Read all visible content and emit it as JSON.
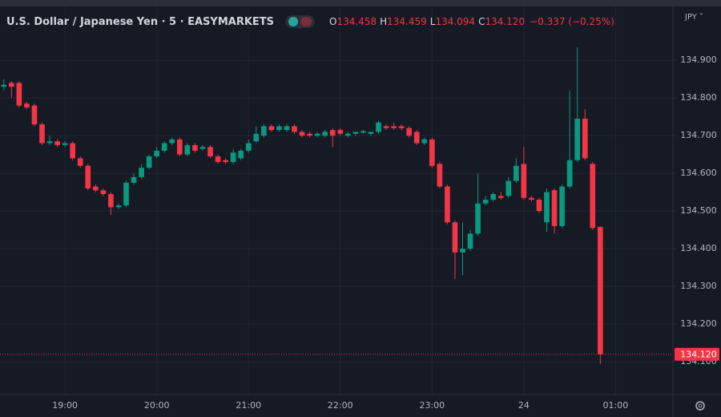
{
  "chart_data": {
    "type": "candlestick",
    "title": "U.S. Dollar / Japanese Yen · 5 · EASYMARKETS",
    "legend": {
      "o": "O",
      "open": "134.458",
      "h": "H",
      "high": "134.459",
      "l": "L",
      "low": "134.094",
      "c": "C",
      "close": "134.120",
      "change": "−0.337 (−0.25%)"
    },
    "currency": "JPY",
    "categories": [
      null,
      null,
      null,
      null,
      null,
      null,
      null,
      null,
      "19:00",
      null,
      null,
      null,
      null,
      null,
      null,
      null,
      null,
      null,
      null,
      null,
      "20:00",
      null,
      null,
      null,
      null,
      null,
      null,
      null,
      null,
      null,
      null,
      null,
      "21:00",
      null,
      null,
      null,
      null,
      null,
      null,
      null,
      null,
      null,
      null,
      null,
      "22:00",
      null,
      null,
      null,
      null,
      null,
      null,
      null,
      null,
      null,
      null,
      null,
      "23:00",
      null,
      null,
      null,
      null,
      null,
      null,
      null,
      null,
      null,
      null,
      null,
      "24",
      null,
      null,
      null,
      null,
      null,
      null,
      null,
      null,
      null,
      null,
      null,
      "01:00",
      null,
      null,
      null,
      null,
      null,
      null,
      null
    ],
    "open": [
      134.83,
      134.84,
      134.84,
      134.785,
      134.78,
      134.73,
      134.68,
      134.685,
      134.675,
      134.68,
      134.64,
      134.62,
      134.565,
      134.555,
      134.545,
      134.51,
      134.515,
      134.575,
      134.59,
      134.615,
      134.645,
      134.66,
      134.68,
      134.69,
      134.65,
      134.675,
      134.665,
      134.67,
      134.645,
      134.635,
      134.63,
      134.64,
      134.66,
      134.685,
      134.7,
      134.725,
      134.715,
      134.715,
      134.725,
      134.71,
      134.705,
      134.7,
      134.7,
      134.715,
      134.715,
      134.7,
      134.705,
      134.708,
      134.705,
      134.71,
      134.725,
      134.725,
      134.725,
      134.72,
      134.71,
      134.68,
      134.69,
      134.625,
      134.565,
      134.47,
      134.39,
      134.4,
      134.44,
      134.52,
      134.53,
      134.54,
      134.54,
      134.58,
      134.625,
      134.535,
      134.53,
      134.47,
      134.555,
      134.46,
      134.565,
      134.635,
      134.745,
      134.625,
      134.458,
      null,
      null,
      null,
      null,
      null,
      null,
      null,
      null,
      null
    ],
    "high": [
      134.85,
      134.845,
      134.845,
      134.79,
      134.785,
      134.735,
      134.7,
      134.69,
      134.685,
      134.685,
      134.645,
      134.625,
      134.57,
      134.56,
      134.55,
      134.52,
      134.58,
      134.6,
      134.625,
      134.65,
      134.67,
      134.685,
      134.695,
      134.695,
      134.68,
      134.68,
      134.675,
      134.675,
      134.65,
      134.64,
      134.665,
      134.665,
      134.69,
      134.725,
      134.73,
      134.73,
      134.73,
      134.73,
      134.73,
      134.715,
      134.71,
      134.71,
      134.715,
      134.72,
      134.72,
      134.71,
      134.71,
      134.715,
      134.71,
      134.74,
      134.73,
      134.735,
      134.73,
      134.725,
      134.715,
      134.695,
      134.695,
      134.63,
      134.57,
      134.475,
      134.47,
      134.45,
      134.6,
      134.54,
      134.55,
      134.55,
      134.59,
      134.64,
      134.67,
      134.54,
      134.535,
      134.56,
      134.56,
      134.57,
      134.82,
      134.935,
      134.77,
      134.63,
      134.459,
      null,
      null,
      null,
      null,
      null,
      null,
      null,
      null,
      null
    ],
    "low": [
      134.82,
      134.8,
      134.775,
      134.77,
      134.725,
      134.675,
      134.675,
      134.67,
      134.67,
      134.635,
      134.615,
      134.555,
      134.55,
      134.54,
      134.49,
      134.505,
      134.51,
      134.57,
      134.585,
      134.61,
      134.64,
      134.655,
      134.675,
      134.645,
      134.645,
      134.655,
      134.66,
      134.64,
      134.625,
      134.625,
      134.625,
      134.635,
      134.655,
      134.68,
      134.695,
      134.71,
      134.71,
      134.71,
      134.705,
      134.695,
      134.695,
      134.695,
      134.695,
      134.67,
      134.7,
      134.695,
      134.7,
      134.705,
      134.7,
      134.705,
      134.715,
      134.715,
      134.715,
      134.695,
      134.675,
      134.675,
      134.615,
      134.56,
      134.465,
      134.32,
      134.33,
      134.395,
      134.435,
      134.515,
      134.525,
      134.53,
      134.535,
      134.575,
      134.53,
      134.525,
      134.495,
      134.445,
      134.44,
      134.455,
      134.56,
      134.63,
      134.635,
      134.45,
      134.094,
      null,
      null,
      null,
      null,
      null,
      null,
      null,
      null,
      null
    ],
    "close": [
      134.835,
      134.83,
      134.78,
      134.775,
      134.73,
      134.68,
      134.685,
      134.675,
      134.68,
      134.64,
      134.62,
      134.56,
      134.555,
      134.545,
      134.51,
      134.515,
      134.575,
      134.59,
      134.615,
      134.645,
      134.66,
      134.68,
      134.69,
      134.65,
      134.675,
      134.66,
      134.67,
      134.645,
      134.63,
      134.63,
      134.655,
      134.66,
      134.68,
      134.705,
      134.725,
      134.715,
      134.725,
      134.725,
      134.71,
      134.7,
      134.7,
      134.705,
      134.71,
      134.7,
      134.705,
      134.705,
      134.71,
      134.712,
      134.71,
      134.735,
      134.72,
      134.72,
      134.72,
      134.7,
      134.68,
      134.69,
      134.62,
      134.565,
      134.47,
      134.39,
      134.4,
      134.44,
      134.52,
      134.53,
      134.545,
      134.535,
      134.58,
      134.62,
      134.535,
      134.53,
      134.5,
      134.55,
      134.46,
      134.565,
      134.635,
      134.745,
      134.64,
      134.455,
      134.12,
      null,
      null,
      null,
      null,
      null,
      null,
      null,
      null,
      null
    ],
    "up_color": "#089981",
    "down_color": "#f23645",
    "last_price": {
      "value": 134.12,
      "label": "134.120"
    },
    "ylim": [
      134.013,
      135.043
    ],
    "yticks": [
      {
        "value": 134.1,
        "label": "134.100"
      },
      {
        "value": 134.2,
        "label": "134.200"
      },
      {
        "value": 134.3,
        "label": "134.300"
      },
      {
        "value": 134.4,
        "label": "134.400"
      },
      {
        "value": 134.5,
        "label": "134.500"
      },
      {
        "value": 134.6,
        "label": "134.600"
      },
      {
        "value": 134.7,
        "label": "134.700"
      },
      {
        "value": 134.8,
        "label": "134.800"
      },
      {
        "value": 134.9,
        "label": "134.900"
      }
    ],
    "grid": true
  }
}
